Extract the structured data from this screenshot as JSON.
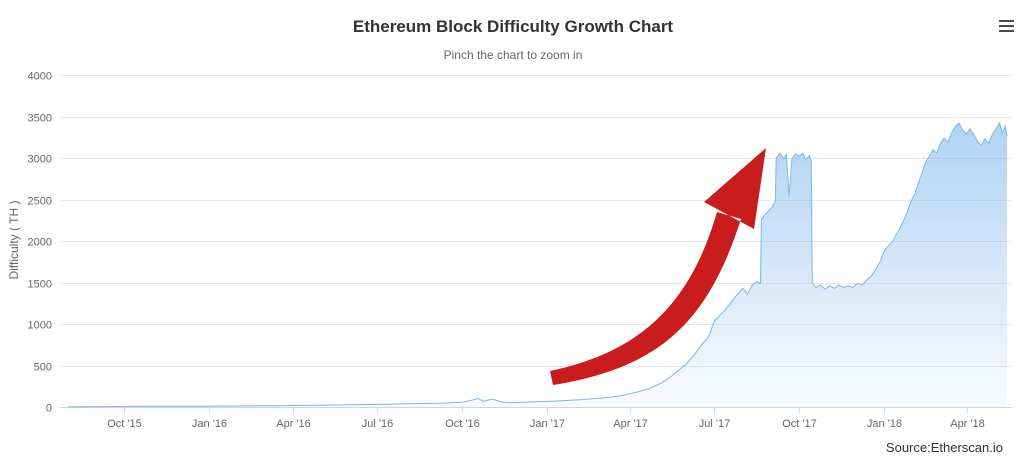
{
  "chart": {
    "title": "Ethereum Block Difficulty Growth Chart",
    "subtitle": "Pinch the chart to zoom in",
    "yAxisTitle": "Difficulty ( TH )",
    "source": "Source:Etherscan.io"
  },
  "chart_data": {
    "type": "area",
    "title": "Ethereum Block Difficulty Growth Chart",
    "subtitle": "Pinch the chart to zoom in",
    "xlabel": "",
    "ylabel": "Difficulty ( TH )",
    "unit": "TH",
    "series_name": "Difficulty",
    "legend": "off",
    "grid": "on",
    "ylim": [
      0,
      4000
    ],
    "yticks": [
      0,
      500,
      1000,
      1500,
      2000,
      2500,
      3000,
      3500,
      4000
    ],
    "xticks": [
      {
        "label": "Oct '15",
        "date": "2015-10-01"
      },
      {
        "label": "Jan '16",
        "date": "2016-01-01"
      },
      {
        "label": "Apr '16",
        "date": "2016-04-01"
      },
      {
        "label": "Jul '16",
        "date": "2016-07-01"
      },
      {
        "label": "Oct '16",
        "date": "2016-10-01"
      },
      {
        "label": "Jan '17",
        "date": "2017-01-01"
      },
      {
        "label": "Apr '17",
        "date": "2017-04-01"
      },
      {
        "label": "Jul '17",
        "date": "2017-07-01"
      },
      {
        "label": "Oct '17",
        "date": "2017-10-01"
      },
      {
        "label": "Jan '18",
        "date": "2018-01-01"
      },
      {
        "label": "Apr '18",
        "date": "2018-04-01"
      }
    ],
    "colors": {
      "line": "#7cb5ec",
      "area_top_opacity": 0.6,
      "area_bottom_opacity": 0.05,
      "grid": "#e6e6e6",
      "axis_line": "#ccd6eb",
      "label": "#666666",
      "title": "#333333"
    },
    "annotation": {
      "type": "up-arrow",
      "color": "#c91d1d"
    },
    "points": [
      [
        "2015-08-01",
        1
      ],
      [
        "2015-08-20",
        3
      ],
      [
        "2015-09-10",
        5
      ],
      [
        "2015-10-01",
        7
      ],
      [
        "2015-10-20",
        8
      ],
      [
        "2015-11-10",
        8
      ],
      [
        "2015-12-01",
        9
      ],
      [
        "2015-12-20",
        10
      ],
      [
        "2016-01-10",
        11
      ],
      [
        "2016-02-01",
        12
      ],
      [
        "2016-02-20",
        14
      ],
      [
        "2016-03-10",
        15
      ],
      [
        "2016-04-01",
        18
      ],
      [
        "2016-04-20",
        20
      ],
      [
        "2016-05-10",
        23
      ],
      [
        "2016-06-01",
        27
      ],
      [
        "2016-06-20",
        30
      ],
      [
        "2016-07-10",
        33
      ],
      [
        "2016-08-01",
        38
      ],
      [
        "2016-08-20",
        42
      ],
      [
        "2016-09-10",
        47
      ],
      [
        "2016-10-01",
        58
      ],
      [
        "2016-10-10",
        78
      ],
      [
        "2016-10-18",
        104
      ],
      [
        "2016-10-24",
        70
      ],
      [
        "2016-11-03",
        96
      ],
      [
        "2016-11-12",
        62
      ],
      [
        "2016-11-22",
        50
      ],
      [
        "2016-12-05",
        57
      ],
      [
        "2016-12-20",
        63
      ],
      [
        "2017-01-05",
        70
      ],
      [
        "2017-01-20",
        77
      ],
      [
        "2017-02-05",
        88
      ],
      [
        "2017-02-20",
        100
      ],
      [
        "2017-03-07",
        115
      ],
      [
        "2017-03-22",
        135
      ],
      [
        "2017-04-01",
        160
      ],
      [
        "2017-04-12",
        190
      ],
      [
        "2017-04-22",
        225
      ],
      [
        "2017-05-02",
        275
      ],
      [
        "2017-05-12",
        340
      ],
      [
        "2017-05-22",
        430
      ],
      [
        "2017-06-01",
        520
      ],
      [
        "2017-06-10",
        640
      ],
      [
        "2017-06-18",
        760
      ],
      [
        "2017-06-25",
        850
      ],
      [
        "2017-07-01",
        1040
      ],
      [
        "2017-07-06",
        1090
      ],
      [
        "2017-07-12",
        1160
      ],
      [
        "2017-07-18",
        1240
      ],
      [
        "2017-07-24",
        1330
      ],
      [
        "2017-08-01",
        1430
      ],
      [
        "2017-08-06",
        1360
      ],
      [
        "2017-08-11",
        1470
      ],
      [
        "2017-08-16",
        1510
      ],
      [
        "2017-08-20",
        1490
      ],
      [
        "2017-08-21",
        2260
      ],
      [
        "2017-08-26",
        2330
      ],
      [
        "2017-09-01",
        2400
      ],
      [
        "2017-09-05",
        2480
      ],
      [
        "2017-09-06",
        3000
      ],
      [
        "2017-09-10",
        3060
      ],
      [
        "2017-09-14",
        2990
      ],
      [
        "2017-09-17",
        3040
      ],
      [
        "2017-09-20",
        2540
      ],
      [
        "2017-09-23",
        2990
      ],
      [
        "2017-09-27",
        3050
      ],
      [
        "2017-10-01",
        3020
      ],
      [
        "2017-10-05",
        3060
      ],
      [
        "2017-10-08",
        2980
      ],
      [
        "2017-10-12",
        3030
      ],
      [
        "2017-10-14",
        2960
      ],
      [
        "2017-10-15",
        1500
      ],
      [
        "2017-10-19",
        1440
      ],
      [
        "2017-10-24",
        1470
      ],
      [
        "2017-10-29",
        1420
      ],
      [
        "2017-11-03",
        1460
      ],
      [
        "2017-11-08",
        1430
      ],
      [
        "2017-11-13",
        1470
      ],
      [
        "2017-11-18",
        1440
      ],
      [
        "2017-11-23",
        1460
      ],
      [
        "2017-11-28",
        1440
      ],
      [
        "2017-12-03",
        1490
      ],
      [
        "2017-12-08",
        1470
      ],
      [
        "2017-12-13",
        1530
      ],
      [
        "2017-12-18",
        1580
      ],
      [
        "2017-12-23",
        1660
      ],
      [
        "2017-12-28",
        1760
      ],
      [
        "2018-01-01",
        1880
      ],
      [
        "2018-01-06",
        1950
      ],
      [
        "2018-01-10",
        1990
      ],
      [
        "2018-01-14",
        2080
      ],
      [
        "2018-01-18",
        2150
      ],
      [
        "2018-01-22",
        2250
      ],
      [
        "2018-01-26",
        2350
      ],
      [
        "2018-01-30",
        2480
      ],
      [
        "2018-02-03",
        2560
      ],
      [
        "2018-02-07",
        2700
      ],
      [
        "2018-02-11",
        2820
      ],
      [
        "2018-02-15",
        2950
      ],
      [
        "2018-02-19",
        3020
      ],
      [
        "2018-02-23",
        3100
      ],
      [
        "2018-02-27",
        3060
      ],
      [
        "2018-03-03",
        3180
      ],
      [
        "2018-03-07",
        3240
      ],
      [
        "2018-03-11",
        3190
      ],
      [
        "2018-03-15",
        3300
      ],
      [
        "2018-03-19",
        3380
      ],
      [
        "2018-03-23",
        3420
      ],
      [
        "2018-03-27",
        3340
      ],
      [
        "2018-03-31",
        3290
      ],
      [
        "2018-04-04",
        3350
      ],
      [
        "2018-04-08",
        3280
      ],
      [
        "2018-04-12",
        3200
      ],
      [
        "2018-04-16",
        3150
      ],
      [
        "2018-04-20",
        3230
      ],
      [
        "2018-04-24",
        3180
      ],
      [
        "2018-04-28",
        3280
      ],
      [
        "2018-05-02",
        3350
      ],
      [
        "2018-05-06",
        3420
      ],
      [
        "2018-05-09",
        3300
      ],
      [
        "2018-05-12",
        3380
      ],
      [
        "2018-05-14",
        3260
      ]
    ]
  }
}
